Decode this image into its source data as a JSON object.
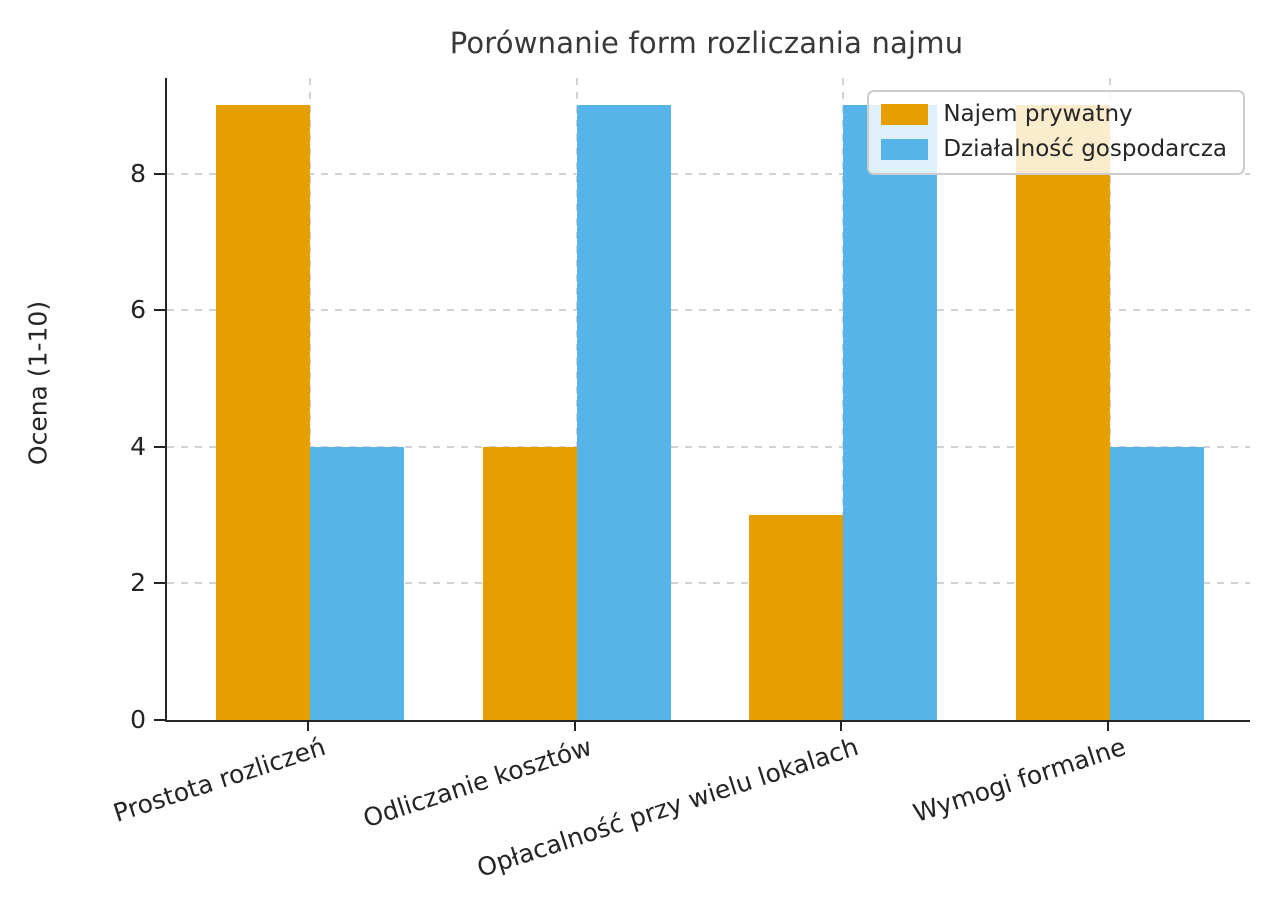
{
  "chart_data": {
    "type": "bar",
    "title": "Porównanie form rozliczania najmu",
    "xlabel": "",
    "ylabel": "Ocena (1-10)",
    "categories": [
      "Prostota rozliczeń",
      "Odliczanie kosztów",
      "Opłacalność przy wielu lokalach",
      "Wymogi formalne"
    ],
    "series": [
      {
        "name": "Najem prywatny",
        "color": "#E69F00",
        "values": [
          9,
          4,
          3,
          9
        ]
      },
      {
        "name": "Działalność gospodarcza",
        "color": "#56B4E9",
        "values": [
          4,
          9,
          9,
          4
        ]
      }
    ],
    "ylim": [
      0,
      9.4
    ],
    "yticks": [
      0,
      2,
      4,
      6,
      8
    ],
    "grid": "dashed horizontal and vertical, light gray",
    "legend_position": "upper right",
    "xticklabel_rotation_deg": 18,
    "colors": {
      "background": "#ffffff",
      "spine": "#262626",
      "grid": "#d2d2d2",
      "text": "#242424"
    }
  }
}
